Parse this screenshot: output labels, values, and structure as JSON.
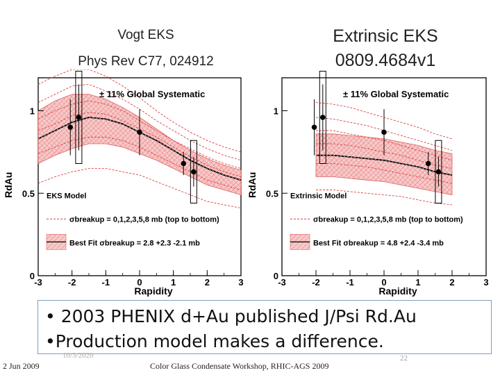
{
  "titles": {
    "left_line1": "Vogt EKS",
    "left_line2": "Phys Rev C77, 024912",
    "right_line1": "Extrinsic EKS",
    "right_line2": "0809.4684v1"
  },
  "bullets": [
    "• 2003 PHENIX d+Au published J/Psi Rd.Au",
    "•Production model makes a difference."
  ],
  "footer": {
    "date": "2 Jun 2009",
    "event": "Color Glass Condensate Workshop, RHIC-AGS 2009",
    "hidden_date": "10/3/2020",
    "page": "22"
  },
  "colors": {
    "band": "#e06060",
    "curve": "#000000",
    "dashed": "#d84040",
    "text": "#111111"
  },
  "chart_data": [
    {
      "type": "line",
      "xlabel": "Rapidity",
      "ylabel": "RdAu",
      "xlim": [
        -3,
        3
      ],
      "ylim": [
        0,
        1.2
      ],
      "xticks": [
        -3,
        -2,
        -1,
        0,
        1,
        2,
        3
      ],
      "yticks": [
        0,
        0.5,
        1
      ],
      "annotation": "± 11% Global Systematic",
      "legend": {
        "title": "EKS Model",
        "dashed": "σbreakup = 0,1,2,3,5,8 mb (top to bottom)",
        "band": "Best Fit σbreakup = 2.8 +2.3 -2.1 mb"
      },
      "best_fit": {
        "x": [
          -3,
          -2.5,
          -2,
          -1.5,
          -1,
          -0.5,
          0,
          0.5,
          1,
          1.5,
          2,
          2.5,
          3
        ],
        "y": [
          0.83,
          0.88,
          0.93,
          0.96,
          0.95,
          0.92,
          0.87,
          0.82,
          0.76,
          0.7,
          0.65,
          0.61,
          0.58
        ]
      },
      "band": {
        "x": [
          -3,
          -2.5,
          -2,
          -1.5,
          -1,
          -0.5,
          0,
          0.5,
          1,
          1.5,
          2,
          2.5,
          3
        ],
        "upper": [
          1.0,
          1.06,
          1.1,
          1.1,
          1.07,
          1.02,
          0.96,
          0.89,
          0.82,
          0.76,
          0.71,
          0.67,
          0.64
        ],
        "lower": [
          0.68,
          0.73,
          0.77,
          0.8,
          0.8,
          0.78,
          0.74,
          0.7,
          0.65,
          0.6,
          0.55,
          0.52,
          0.49
        ]
      },
      "dashed_curves": [
        [
          1.16,
          1.21,
          1.25,
          1.25,
          1.21,
          1.15,
          1.08,
          1.0,
          0.93,
          0.87,
          0.82,
          0.78,
          0.75
        ],
        [
          1.05,
          1.1,
          1.15,
          1.16,
          1.12,
          1.07,
          1.01,
          0.94,
          0.88,
          0.82,
          0.77,
          0.73,
          0.7
        ],
        [
          0.95,
          1.0,
          1.04,
          1.06,
          1.04,
          1.0,
          0.94,
          0.88,
          0.82,
          0.77,
          0.72,
          0.68,
          0.65
        ],
        [
          0.88,
          0.92,
          0.97,
          0.99,
          0.98,
          0.94,
          0.89,
          0.84,
          0.78,
          0.72,
          0.67,
          0.63,
          0.6
        ],
        [
          0.74,
          0.78,
          0.82,
          0.84,
          0.84,
          0.82,
          0.78,
          0.73,
          0.68,
          0.63,
          0.58,
          0.55,
          0.52
        ],
        [
          0.56,
          0.6,
          0.63,
          0.65,
          0.65,
          0.63,
          0.61,
          0.57,
          0.53,
          0.49,
          0.45,
          0.43,
          0.41
        ]
      ],
      "points": [
        {
          "x": -2.05,
          "y": 0.9,
          "err": 0.17,
          "sys": 0.0,
          "box": false
        },
        {
          "x": -1.8,
          "y": 0.96,
          "err": 0.2,
          "sys": 0.18,
          "box": true
        },
        {
          "x": 0.0,
          "y": 0.87,
          "err": 0.14,
          "sys": 0.0,
          "box": false
        },
        {
          "x": 1.3,
          "y": 0.68,
          "err": 0.07,
          "sys": 0.05,
          "box": false
        },
        {
          "x": 1.6,
          "y": 0.63,
          "err": 0.09,
          "sys": 0.09,
          "box": true
        }
      ]
    },
    {
      "type": "line",
      "xlabel": "Rapidity",
      "ylabel": "RdAu",
      "xlim": [
        -3,
        3
      ],
      "ylim": [
        0,
        1.2
      ],
      "xticks": [
        -3,
        -2,
        -1,
        0,
        1,
        2,
        3
      ],
      "yticks": [
        0,
        0.5,
        1
      ],
      "annotation": "± 11% Global Systematic",
      "legend": {
        "title": "Extrinsic Model",
        "dashed": "σbreakup = 0,1,2,3,5,8 mb (top to bottom)",
        "band": "Best Fit σbreakup = 4.8 +2.4 -3.4 mb"
      },
      "best_fit": {
        "x": [
          -2,
          -1.5,
          -1,
          -0.5,
          0,
          0.5,
          1,
          1.5,
          2
        ],
        "y": [
          0.73,
          0.73,
          0.72,
          0.71,
          0.7,
          0.68,
          0.66,
          0.63,
          0.61
        ]
      },
      "band": {
        "x": [
          -2,
          -1.5,
          -1,
          -0.5,
          0,
          0.5,
          1,
          1.5,
          2
        ],
        "upper": [
          0.86,
          0.86,
          0.85,
          0.84,
          0.83,
          0.81,
          0.79,
          0.76,
          0.74
        ],
        "lower": [
          0.6,
          0.6,
          0.59,
          0.58,
          0.57,
          0.55,
          0.53,
          0.51,
          0.49
        ]
      },
      "dashed_curves": [
        [
          1.05,
          1.04,
          1.02,
          0.99,
          0.96,
          0.93,
          0.9,
          0.86,
          0.83
        ],
        [
          0.96,
          0.95,
          0.93,
          0.91,
          0.88,
          0.85,
          0.82,
          0.79,
          0.76
        ],
        [
          0.88,
          0.88,
          0.86,
          0.84,
          0.82,
          0.79,
          0.76,
          0.73,
          0.7
        ],
        [
          0.8,
          0.8,
          0.79,
          0.77,
          0.75,
          0.73,
          0.7,
          0.67,
          0.65
        ],
        [
          0.68,
          0.68,
          0.67,
          0.66,
          0.64,
          0.62,
          0.6,
          0.58,
          0.56
        ],
        [
          0.52,
          0.52,
          0.51,
          0.5,
          0.49,
          0.48,
          0.46,
          0.44,
          0.43
        ]
      ],
      "points": [
        {
          "x": -2.05,
          "y": 0.9,
          "err": 0.17,
          "sys": 0.0,
          "box": false
        },
        {
          "x": -1.8,
          "y": 0.96,
          "err": 0.2,
          "sys": 0.18,
          "box": true
        },
        {
          "x": 0.0,
          "y": 0.87,
          "err": 0.14,
          "sys": 0.0,
          "box": false
        },
        {
          "x": 1.3,
          "y": 0.68,
          "err": 0.07,
          "sys": 0.05,
          "box": false
        },
        {
          "x": 1.6,
          "y": 0.63,
          "err": 0.09,
          "sys": 0.09,
          "box": true
        }
      ]
    }
  ]
}
